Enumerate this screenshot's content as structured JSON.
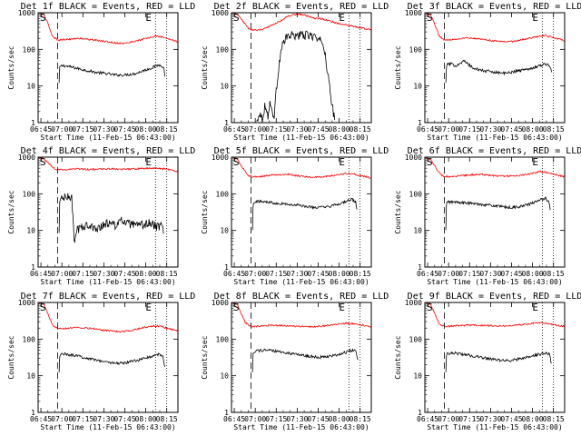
{
  "figure": {
    "colors": {
      "events": "#000000",
      "lld": "#ff0000",
      "axes": "#000000",
      "background": "#ffffff"
    },
    "xlabel": "Start Time (11-Feb-15 06:43:00)",
    "ylabel": "Counts/sec",
    "xticks": [
      "06:45",
      "07:00",
      "07:15",
      "07:30",
      "07:45",
      "08:00",
      "08:15"
    ],
    "yticks": [
      "1",
      "10",
      "100",
      "1000"
    ],
    "start_marker": "S",
    "end_marker": "E"
  },
  "chart_data": [
    {
      "type": "line",
      "title": "Det 1f BLACK = Events, RED = LLD",
      "x_unit": "minutes after 06:43:00",
      "xlim": [
        0,
        100
      ],
      "ylim": [
        1,
        1000
      ],
      "yscale": "log",
      "start_line_x": 14,
      "end_lines_x": [
        84,
        92
      ],
      "series": [
        {
          "name": "Events",
          "color": "#000000",
          "start_x": 15,
          "end_x": 91,
          "x": [
            15,
            15.5,
            18,
            25,
            32,
            40,
            48,
            55,
            62,
            70,
            75,
            80,
            84,
            88,
            90,
            91
          ],
          "y": [
            12,
            34,
            36,
            32,
            28,
            24,
            22,
            20,
            20,
            22,
            26,
            30,
            35,
            38,
            30,
            14
          ]
        },
        {
          "name": "LLD",
          "color": "#ff0000",
          "start_x": 0,
          "end_x": 100,
          "x": [
            0,
            4,
            7,
            10,
            13,
            15,
            22,
            30,
            40,
            50,
            55,
            62,
            70,
            78,
            84,
            88,
            92,
            96,
            100
          ],
          "y": [
            1000,
            900,
            500,
            240,
            190,
            180,
            190,
            200,
            180,
            160,
            150,
            145,
            170,
            200,
            230,
            220,
            200,
            180,
            160
          ]
        }
      ]
    },
    {
      "type": "line",
      "title": "Det 2f BLACK = Events, RED = LLD",
      "x_unit": "minutes after 06:43:00",
      "xlim": [
        0,
        100
      ],
      "ylim": [
        1,
        1000
      ],
      "yscale": "log",
      "start_line_x": 14,
      "end_lines_x": [
        84,
        92
      ],
      "series": [
        {
          "name": "Events",
          "color": "#000000",
          "start_x": 18,
          "end_x": 74,
          "x": [
            18,
            20,
            22,
            24,
            26,
            28,
            30,
            31,
            32,
            34,
            36,
            40,
            45,
            50,
            55,
            60,
            62,
            64,
            66,
            68,
            70,
            72,
            74
          ],
          "y": [
            1,
            2,
            1.2,
            3,
            1.5,
            4,
            1.2,
            2,
            8,
            40,
            120,
            230,
            240,
            245,
            240,
            230,
            150,
            200,
            120,
            40,
            10,
            3,
            1
          ]
        },
        {
          "name": "LLD",
          "color": "#ff0000",
          "start_x": 0,
          "end_x": 100,
          "x": [
            0,
            4,
            8,
            12,
            15,
            20,
            25,
            30,
            35,
            40,
            45,
            50,
            55,
            60,
            65,
            70,
            75,
            80,
            85,
            90,
            95,
            100
          ],
          "y": [
            1000,
            900,
            600,
            380,
            330,
            340,
            380,
            480,
            600,
            780,
            900,
            880,
            800,
            700,
            680,
            600,
            520,
            480,
            440,
            400,
            370,
            340
          ]
        }
      ]
    },
    {
      "type": "line",
      "title": "Det 3f BLACK = Events, RED = LLD",
      "x_unit": "minutes after 06:43:00",
      "xlim": [
        0,
        100
      ],
      "ylim": [
        1,
        1000
      ],
      "yscale": "log",
      "start_line_x": 14,
      "end_lines_x": [
        84,
        92
      ],
      "series": [
        {
          "name": "Events",
          "color": "#000000",
          "start_x": 15,
          "end_x": 91,
          "x": [
            15,
            15.5,
            18,
            22,
            28,
            35,
            42,
            50,
            58,
            66,
            72,
            78,
            84,
            88,
            90,
            91
          ],
          "y": [
            12,
            38,
            40,
            36,
            48,
            30,
            26,
            24,
            22,
            26,
            28,
            32,
            38,
            40,
            32,
            18
          ]
        },
        {
          "name": "LLD",
          "color": "#ff0000",
          "start_x": 0,
          "end_x": 100,
          "x": [
            0,
            4,
            7,
            10,
            13,
            15,
            22,
            30,
            40,
            50,
            58,
            66,
            74,
            80,
            86,
            92,
            100
          ],
          "y": [
            1000,
            900,
            500,
            240,
            190,
            180,
            190,
            210,
            190,
            170,
            160,
            170,
            200,
            220,
            240,
            210,
            170
          ]
        }
      ]
    },
    {
      "type": "line",
      "title": "Det 4f BLACK = Events, RED = LLD",
      "x_unit": "minutes after 06:43:00",
      "xlim": [
        0,
        100
      ],
      "ylim": [
        1,
        1000
      ],
      "yscale": "log",
      "start_line_x": 14,
      "end_lines_x": [
        84,
        92
      ],
      "series": [
        {
          "name": "Events",
          "color": "#000000",
          "start_x": 15,
          "end_x": 90,
          "x": [
            15,
            15.5,
            17,
            20,
            24,
            25,
            26,
            28,
            30,
            35,
            40,
            45,
            50,
            55,
            60,
            65,
            70,
            75,
            80,
            85,
            88,
            90
          ],
          "y": [
            8,
            70,
            75,
            80,
            78,
            20,
            4,
            10,
            12,
            14,
            11,
            13,
            16,
            14,
            18,
            15,
            13,
            14,
            16,
            12,
            14,
            10
          ]
        },
        {
          "name": "LLD",
          "color": "#ff0000",
          "start_x": 0,
          "end_x": 100,
          "x": [
            0,
            4,
            8,
            12,
            15,
            20,
            28,
            36,
            44,
            52,
            60,
            68,
            76,
            84,
            90,
            96,
            100
          ],
          "y": [
            1000,
            900,
            650,
            480,
            450,
            460,
            480,
            460,
            470,
            480,
            470,
            480,
            490,
            500,
            480,
            440,
            400
          ]
        }
      ]
    },
    {
      "type": "line",
      "title": "Det 5f BLACK = Events, RED = LLD",
      "x_unit": "minutes after 06:43:00",
      "xlim": [
        0,
        100
      ],
      "ylim": [
        1,
        1000
      ],
      "yscale": "log",
      "start_line_x": 14,
      "end_lines_x": [
        84,
        92
      ],
      "series": [
        {
          "name": "Events",
          "color": "#000000",
          "start_x": 15,
          "end_x": 90,
          "x": [
            15,
            15.5,
            18,
            25,
            32,
            40,
            48,
            55,
            62,
            70,
            76,
            82,
            86,
            89,
            90
          ],
          "y": [
            10,
            60,
            62,
            60,
            56,
            52,
            48,
            44,
            42,
            44,
            52,
            62,
            70,
            60,
            28
          ]
        },
        {
          "name": "LLD",
          "color": "#ff0000",
          "start_x": 0,
          "end_x": 100,
          "x": [
            0,
            4,
            8,
            12,
            15,
            22,
            30,
            40,
            50,
            58,
            66,
            74,
            82,
            88,
            94,
            100
          ],
          "y": [
            1000,
            900,
            500,
            320,
            290,
            300,
            330,
            340,
            300,
            280,
            290,
            320,
            360,
            340,
            300,
            270
          ]
        }
      ]
    },
    {
      "type": "line",
      "title": "Det 6f BLACK = Events, RED = LLD",
      "x_unit": "minutes after 06:43:00",
      "xlim": [
        0,
        100
      ],
      "ylim": [
        1,
        1000
      ],
      "yscale": "log",
      "start_line_x": 14,
      "end_lines_x": [
        84,
        92
      ],
      "series": [
        {
          "name": "Events",
          "color": "#000000",
          "start_x": 15,
          "end_x": 90,
          "x": [
            15,
            15.5,
            18,
            25,
            32,
            40,
            48,
            55,
            62,
            70,
            76,
            82,
            86,
            89,
            90
          ],
          "y": [
            10,
            58,
            60,
            58,
            55,
            52,
            48,
            44,
            42,
            46,
            54,
            66,
            76,
            60,
            28
          ]
        },
        {
          "name": "LLD",
          "color": "#ff0000",
          "start_x": 0,
          "end_x": 100,
          "x": [
            0,
            4,
            8,
            12,
            15,
            22,
            30,
            40,
            50,
            58,
            66,
            74,
            82,
            88,
            94,
            100
          ],
          "y": [
            1000,
            900,
            500,
            320,
            290,
            300,
            320,
            340,
            310,
            300,
            310,
            340,
            400,
            380,
            330,
            290
          ]
        }
      ]
    },
    {
      "type": "line",
      "title": "Det 7f BLACK = Events, RED = LLD",
      "x_unit": "minutes after 06:43:00",
      "xlim": [
        0,
        100
      ],
      "ylim": [
        1,
        1000
      ],
      "yscale": "log",
      "start_line_x": 14,
      "end_lines_x": [
        84,
        92
      ],
      "series": [
        {
          "name": "Events",
          "color": "#000000",
          "start_x": 15,
          "end_x": 91,
          "x": [
            15,
            15.5,
            18,
            25,
            32,
            40,
            48,
            55,
            62,
            70,
            76,
            82,
            86,
            89,
            91
          ],
          "y": [
            12,
            38,
            40,
            36,
            32,
            28,
            24,
            22,
            22,
            26,
            30,
            34,
            38,
            36,
            16
          ]
        },
        {
          "name": "LLD",
          "color": "#ff0000",
          "start_x": 0,
          "end_x": 100,
          "x": [
            0,
            4,
            7,
            10,
            13,
            15,
            22,
            30,
            40,
            50,
            58,
            66,
            74,
            82,
            88,
            94,
            100
          ],
          "y": [
            1000,
            900,
            500,
            250,
            200,
            190,
            200,
            210,
            190,
            170,
            160,
            170,
            200,
            230,
            220,
            190,
            170
          ]
        }
      ]
    },
    {
      "type": "line",
      "title": "Det 8f BLACK = Events, RED = LLD",
      "x_unit": "minutes after 06:43:00",
      "xlim": [
        0,
        100
      ],
      "ylim": [
        1,
        1000
      ],
      "yscale": "log",
      "start_line_x": 14,
      "end_lines_x": [
        84,
        92
      ],
      "series": [
        {
          "name": "Events",
          "color": "#000000",
          "start_x": 15,
          "end_x": 91,
          "x": [
            15,
            15.5,
            18,
            25,
            32,
            40,
            48,
            55,
            62,
            70,
            76,
            82,
            86,
            89,
            91
          ],
          "y": [
            12,
            45,
            48,
            50,
            46,
            42,
            38,
            34,
            32,
            34,
            38,
            44,
            50,
            48,
            22
          ]
        },
        {
          "name": "LLD",
          "color": "#ff0000",
          "start_x": 0,
          "end_x": 100,
          "x": [
            0,
            4,
            7,
            10,
            13,
            15,
            22,
            30,
            40,
            50,
            58,
            66,
            74,
            82,
            88,
            94,
            100
          ],
          "y": [
            1000,
            900,
            500,
            280,
            230,
            220,
            230,
            240,
            230,
            220,
            215,
            230,
            250,
            270,
            260,
            240,
            220
          ]
        }
      ]
    },
    {
      "type": "line",
      "title": "Det 9f BLACK = Events, RED = LLD",
      "x_unit": "minutes after 06:43:00",
      "xlim": [
        0,
        100
      ],
      "ylim": [
        1,
        1000
      ],
      "yscale": "log",
      "start_line_x": 14,
      "end_lines_x": [
        84,
        92
      ],
      "series": [
        {
          "name": "Events",
          "color": "#000000",
          "start_x": 15,
          "end_x": 91,
          "x": [
            15,
            15.5,
            18,
            25,
            32,
            40,
            48,
            55,
            62,
            70,
            76,
            82,
            86,
            89,
            91
          ],
          "y": [
            12,
            40,
            42,
            40,
            36,
            32,
            28,
            26,
            26,
            30,
            34,
            38,
            42,
            40,
            18
          ]
        },
        {
          "name": "LLD",
          "color": "#ff0000",
          "start_x": 0,
          "end_x": 100,
          "x": [
            0,
            4,
            7,
            10,
            13,
            15,
            22,
            30,
            40,
            50,
            58,
            66,
            74,
            82,
            88,
            94,
            100
          ],
          "y": [
            1000,
            900,
            500,
            270,
            230,
            220,
            230,
            240,
            235,
            230,
            230,
            240,
            260,
            280,
            260,
            240,
            220
          ]
        }
      ]
    }
  ]
}
